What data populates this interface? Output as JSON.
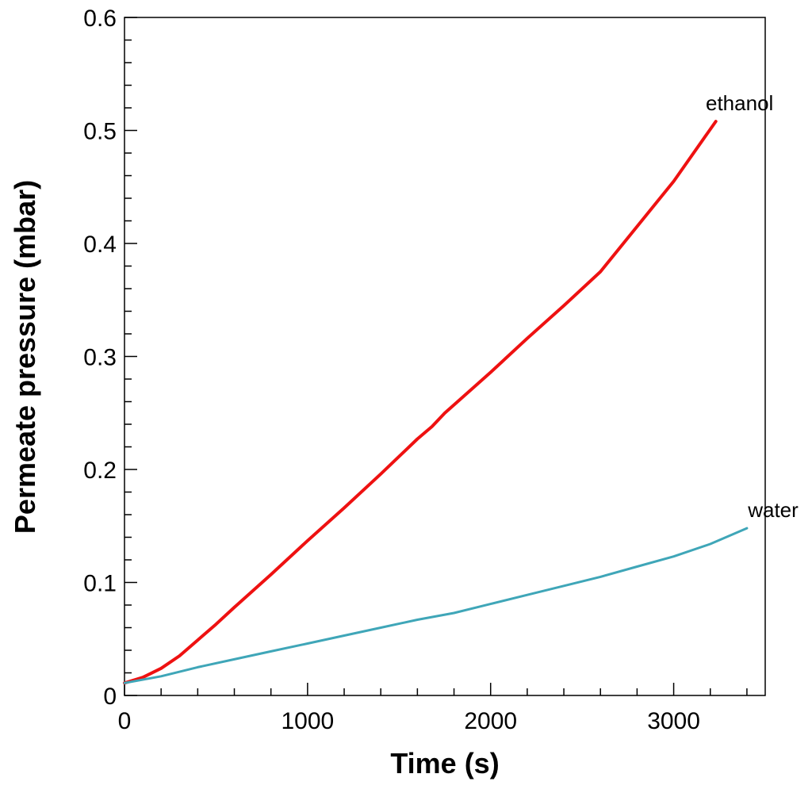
{
  "chart_data": {
    "type": "line",
    "title": "",
    "xlabel": "Time (s)",
    "ylabel": "Permeate pressure (mbar)",
    "xlim": [
      0,
      3500
    ],
    "ylim": [
      0,
      0.6
    ],
    "x_major_ticks": [
      0,
      1000,
      2000,
      3000
    ],
    "x_tick_labels": [
      "0",
      "1000",
      "2000",
      "3000"
    ],
    "x_minor_step": 200,
    "y_major_ticks": [
      0,
      0.1,
      0.2,
      0.3,
      0.4,
      0.5,
      0.6
    ],
    "y_tick_labels": [
      "0",
      "0.1",
      "0.2",
      "0.3",
      "0.4",
      "0.5",
      "0.6"
    ],
    "y_minor_step": 0.02,
    "grid": false,
    "legend": "inline labels at line ends",
    "series": [
      {
        "name": "ethanol",
        "color": "#ee1111",
        "x": [
          0,
          100,
          200,
          300,
          400,
          500,
          600,
          800,
          1000,
          1200,
          1400,
          1600,
          1680,
          1750,
          2000,
          2200,
          2400,
          2600,
          2800,
          3000,
          3230
        ],
        "y": [
          0.011,
          0.016,
          0.024,
          0.035,
          0.049,
          0.063,
          0.078,
          0.107,
          0.137,
          0.166,
          0.196,
          0.227,
          0.238,
          0.25,
          0.286,
          0.316,
          0.345,
          0.375,
          0.415,
          0.455,
          0.508
        ]
      },
      {
        "name": "water",
        "color": "#3fa6b8",
        "x": [
          0,
          200,
          400,
          600,
          800,
          1000,
          1200,
          1400,
          1600,
          1800,
          2000,
          2200,
          2400,
          2600,
          2800,
          3000,
          3200,
          3400
        ],
        "y": [
          0.011,
          0.017,
          0.025,
          0.032,
          0.039,
          0.046,
          0.053,
          0.06,
          0.067,
          0.073,
          0.081,
          0.089,
          0.097,
          0.105,
          0.114,
          0.123,
          0.134,
          0.148
        ]
      }
    ]
  }
}
